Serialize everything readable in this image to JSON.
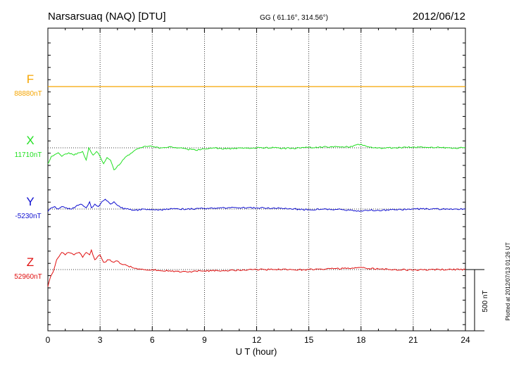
{
  "header": {
    "station": "Narsarsuaq (NAQ)  [DTU]",
    "coords": "GG ( 61.16°, 314.56°)",
    "date": "2012/06/12"
  },
  "plotted_note": "Plotted at 2012/07/13 01:26 UT",
  "chart_data": {
    "type": "line",
    "xlabel": "U T (hour)",
    "xlim": [
      0,
      24
    ],
    "xticks": [
      "0",
      "3",
      "6",
      "9",
      "12",
      "15",
      "18",
      "21",
      "24"
    ],
    "scale_bar_label": "500 nT",
    "series": [
      {
        "name": "F",
        "baseline_label": "88880nT",
        "color": "#f5a500",
        "x": [
          0,
          24
        ],
        "y": [
          0,
          0
        ]
      },
      {
        "name": "X",
        "baseline_label": "11710nT",
        "color": "#22e022",
        "x": [
          0,
          0.05,
          0.2,
          0.4,
          0.6,
          0.8,
          1.0,
          1.2,
          1.5,
          1.8,
          2.0,
          2.2,
          2.35,
          2.5,
          2.6,
          2.8,
          3.0,
          3.2,
          3.4,
          3.6,
          3.8,
          3.95,
          4.1,
          4.3,
          4.6,
          5.0,
          5.5,
          6.0,
          6.5,
          7.0,
          7.5,
          8.0,
          8.5,
          9.0,
          9.5,
          10,
          11,
          12,
          13,
          14,
          15,
          15.5,
          16,
          17,
          17.5,
          18.0,
          18.2,
          18.5,
          19,
          20,
          21,
          22,
          23,
          24
        ],
        "y": [
          -130,
          -120,
          -70,
          -55,
          -40,
          -70,
          -50,
          -40,
          -60,
          -40,
          -30,
          -100,
          0,
          -40,
          -60,
          -30,
          -70,
          -130,
          -80,
          -100,
          -180,
          -160,
          -140,
          -100,
          -60,
          -20,
          10,
          10,
          0,
          10,
          0,
          -10,
          -20,
          -10,
          0,
          -10,
          0,
          0,
          0,
          -5,
          5,
          0,
          10,
          5,
          10,
          30,
          20,
          5,
          0,
          0,
          5,
          5,
          0,
          0
        ]
      },
      {
        "name": "Y",
        "baseline_label": "-5230nT",
        "color": "#1010d0",
        "x": [
          0,
          0.2,
          0.4,
          0.6,
          0.8,
          1.0,
          1.3,
          1.6,
          1.9,
          2.2,
          2.4,
          2.5,
          2.7,
          2.9,
          3.1,
          3.3,
          3.6,
          3.8,
          4.0,
          4.2,
          4.5,
          5.0,
          5.5,
          6.0,
          6.5,
          7.0,
          8.0,
          9.0,
          10,
          11,
          12,
          13,
          14,
          15,
          16,
          17,
          18,
          18.3,
          19,
          20,
          21,
          22,
          23,
          24
        ],
        "y": [
          -20,
          10,
          20,
          0,
          20,
          10,
          0,
          20,
          40,
          10,
          60,
          10,
          40,
          20,
          60,
          80,
          40,
          60,
          30,
          10,
          0,
          -10,
          0,
          -5,
          -5,
          0,
          0,
          5,
          10,
          10,
          10,
          10,
          0,
          -5,
          0,
          -5,
          -15,
          -10,
          -10,
          -5,
          0,
          0,
          0,
          0
        ]
      },
      {
        "name": "Z",
        "baseline_label": "52960nT",
        "color": "#e01010",
        "x": [
          0,
          0.05,
          0.15,
          0.3,
          0.5,
          0.8,
          1.0,
          1.2,
          1.5,
          1.8,
          2.0,
          2.2,
          2.4,
          2.5,
          2.7,
          3.0,
          3.2,
          3.5,
          3.8,
          4.0,
          4.3,
          4.6,
          5.0,
          5.5,
          6.0,
          6.5,
          7.0,
          8.0,
          9.0,
          10,
          11,
          12,
          13,
          14,
          15,
          16,
          17,
          18,
          18.3,
          19,
          20,
          21,
          22,
          23,
          24
        ],
        "y": [
          -140,
          -110,
          -60,
          -20,
          80,
          140,
          120,
          140,
          120,
          140,
          100,
          140,
          120,
          160,
          80,
          120,
          60,
          80,
          60,
          70,
          40,
          30,
          10,
          0,
          0,
          -10,
          -10,
          -20,
          -10,
          -10,
          -5,
          0,
          0,
          0,
          0,
          5,
          10,
          20,
          10,
          5,
          0,
          -5,
          0,
          0,
          0
        ]
      }
    ]
  }
}
